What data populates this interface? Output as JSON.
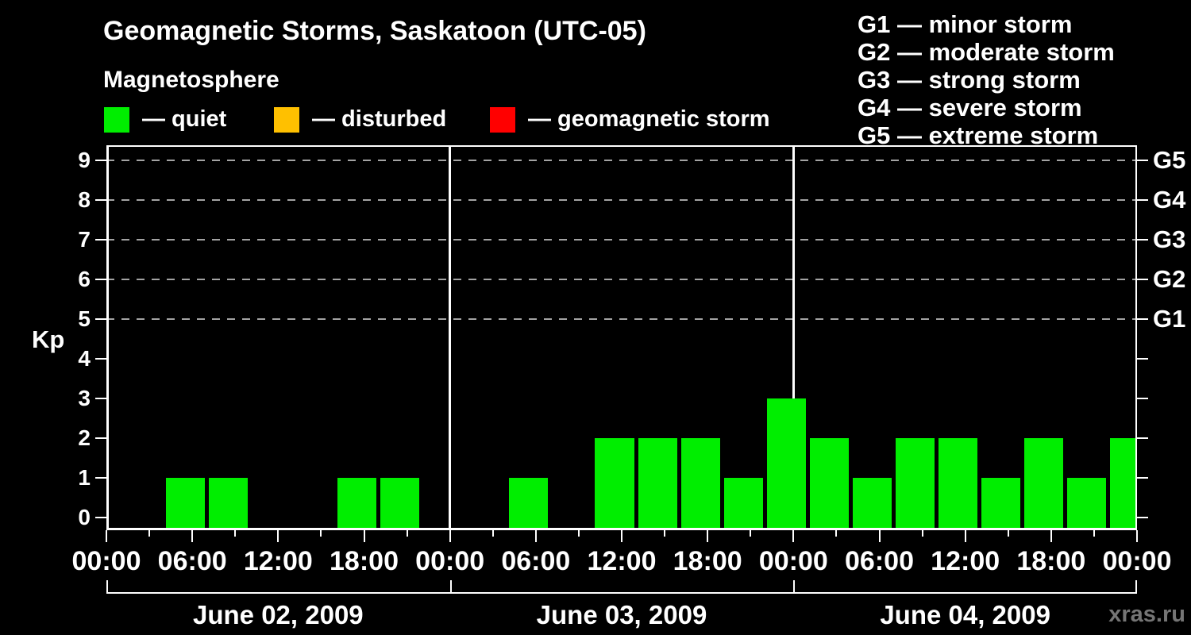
{
  "dash": "—",
  "header": {
    "title": "Geomagnetic Storms, Saskatoon (UTC-05)",
    "subtitle": "Magnetosphere",
    "legend": [
      {
        "label": "quiet",
        "color": "#00ee00"
      },
      {
        "label": "disturbed",
        "color": "#ffc000"
      },
      {
        "label": "geomagnetic storm",
        "color": "#ff0000"
      }
    ]
  },
  "g_legend": [
    {
      "code": "G1",
      "label": "minor storm"
    },
    {
      "code": "G2",
      "label": "moderate storm"
    },
    {
      "code": "G3",
      "label": "strong storm"
    },
    {
      "code": "G4",
      "label": "severe storm"
    },
    {
      "code": "G5",
      "label": "extreme storm"
    }
  ],
  "watermark": "xras.ru",
  "chart_data": {
    "type": "bar",
    "title": "Geomagnetic Storms, Saskatoon (UTC-05)",
    "ylabel": "Kp",
    "ylim": [
      -0.32,
      9.38
    ],
    "yticks": [
      0,
      1,
      2,
      3,
      4,
      5,
      6,
      7,
      8,
      9
    ],
    "gridlines_at": [
      5,
      6,
      7,
      8,
      9
    ],
    "right_axis_labels": [
      {
        "kp": 5,
        "label": "G1"
      },
      {
        "kp": 6,
        "label": "G2"
      },
      {
        "kp": 7,
        "label": "G3"
      },
      {
        "kp": 8,
        "label": "G4"
      },
      {
        "kp": 9,
        "label": "G5"
      }
    ],
    "slot_start_hour": 1,
    "slot_duration_hours": 3,
    "time_tick_interval_hours": 6,
    "time_tick_labels": [
      "00:00",
      "06:00",
      "12:00",
      "18:00"
    ],
    "days": [
      {
        "date": "June 02, 2009",
        "kp_values": [
          0,
          1,
          1,
          0,
          0,
          1,
          1,
          0
        ]
      },
      {
        "date": "June 03, 2009",
        "kp_values": [
          0,
          1,
          0,
          2,
          2,
          2,
          1,
          3
        ]
      },
      {
        "date": "June 04, 2009",
        "kp_values": [
          2,
          1,
          2,
          2,
          1,
          2,
          1,
          2
        ]
      }
    ],
    "color_rules": {
      "quiet_max_kp": 3,
      "disturbed_kp": 4,
      "storm_min_kp": 5
    },
    "colors": {
      "quiet": "#00ee00",
      "disturbed": "#ffc000",
      "storm": "#ff0000",
      "grid": "#a3a3a3",
      "axis": "#ffffff",
      "text": "#ffffff",
      "watermark": "#757575"
    },
    "legend_position": "top-left",
    "grid": "dashed horizontal at G levels only"
  }
}
